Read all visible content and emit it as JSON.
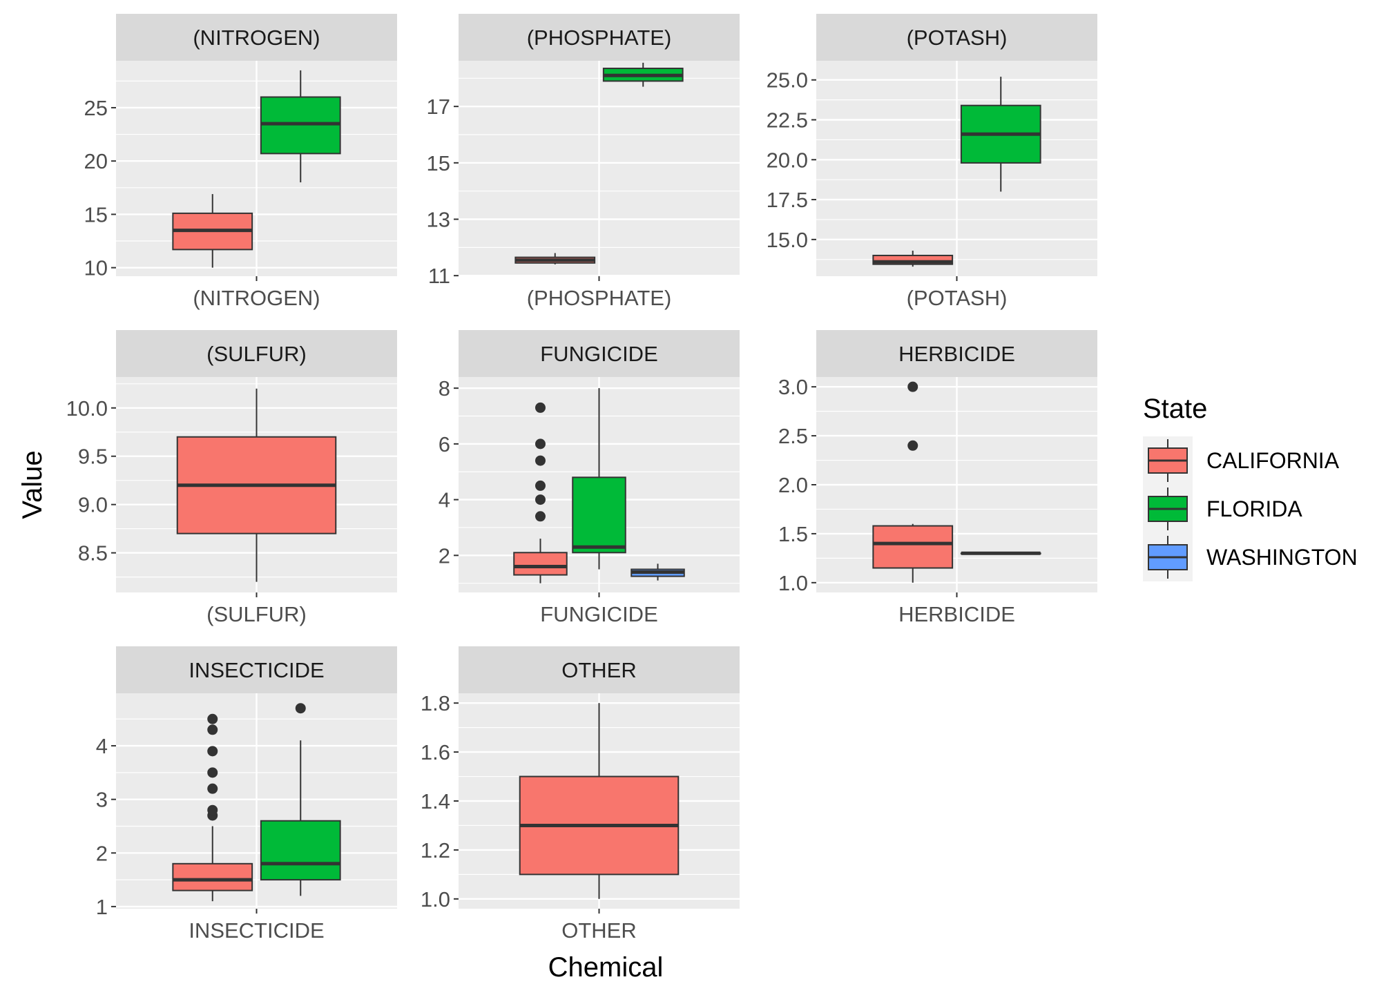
{
  "chart_data": {
    "type": "boxplot",
    "xlabel": "Chemical",
    "ylabel": "Value",
    "legend": {
      "title": "State",
      "position": "right",
      "entries": [
        {
          "name": "CALIFORNIA",
          "color": "#F8766D"
        },
        {
          "name": "FLORIDA",
          "color": "#00BA38"
        },
        {
          "name": "WASHINGTON",
          "color": "#619CFF"
        }
      ]
    },
    "group_colors": {
      "CALIFORNIA": "#F8766D",
      "FLORIDA": "#00BA38",
      "WASHINGTON": "#619CFF"
    },
    "facets": [
      {
        "title": "(NITROGEN)",
        "xtick": "(NITROGEN)",
        "ylim": [
          9.2,
          29.4
        ],
        "yticks": [
          10,
          15,
          20,
          25
        ],
        "ytick_labels": [
          "10",
          "15",
          "20",
          "25"
        ],
        "boxes": [
          {
            "group": "CALIFORNIA",
            "slot": 0,
            "nslots": 2,
            "min": 10.0,
            "q1": 11.7,
            "median": 13.5,
            "q3": 15.1,
            "max": 16.9,
            "outliers": []
          },
          {
            "group": "FLORIDA",
            "slot": 1,
            "nslots": 2,
            "min": 18.0,
            "q1": 20.7,
            "median": 23.5,
            "q3": 26.0,
            "max": 28.5,
            "outliers": []
          }
        ]
      },
      {
        "title": "(PHOSPHATE)",
        "xtick": "(PHOSPHATE)",
        "ylim": [
          10.98,
          18.62
        ],
        "yticks": [
          11,
          13,
          15,
          17
        ],
        "ytick_labels": [
          "11",
          "13",
          "15",
          "17"
        ],
        "boxes": [
          {
            "group": "CALIFORNIA",
            "slot": 0,
            "nslots": 2,
            "min": 11.4,
            "q1": 11.45,
            "median": 11.55,
            "q3": 11.65,
            "max": 11.8,
            "outliers": []
          },
          {
            "group": "FLORIDA",
            "slot": 1,
            "nslots": 2,
            "min": 17.7,
            "q1": 17.9,
            "median": 18.1,
            "q3": 18.35,
            "max": 18.55,
            "outliers": []
          }
        ]
      },
      {
        "title": "(POTASH)",
        "xtick": "(POTASH)",
        "ylim": [
          12.7,
          26.2
        ],
        "yticks": [
          15,
          17.5,
          20,
          22.5,
          25
        ],
        "ytick_labels": [
          "15.0",
          "17.5",
          "20.0",
          "22.5",
          "25.0"
        ],
        "boxes": [
          {
            "group": "CALIFORNIA",
            "slot": 0,
            "nslots": 2,
            "min": 13.3,
            "q1": 13.45,
            "median": 13.6,
            "q3": 14.0,
            "max": 14.3,
            "outliers": []
          },
          {
            "group": "FLORIDA",
            "slot": 1,
            "nslots": 2,
            "min": 18.0,
            "q1": 19.8,
            "median": 21.6,
            "q3": 23.4,
            "max": 25.2,
            "outliers": []
          }
        ]
      },
      {
        "title": "(SULFUR)",
        "xtick": "(SULFUR)",
        "ylim": [
          8.09,
          10.32
        ],
        "yticks": [
          8.5,
          9.0,
          9.5,
          10.0
        ],
        "ytick_labels": [
          "8.5",
          "9.0",
          "9.5",
          "10.0"
        ],
        "boxes": [
          {
            "group": "CALIFORNIA",
            "slot": 0,
            "nslots": 1,
            "min": 8.2,
            "q1": 8.7,
            "median": 9.2,
            "q3": 9.7,
            "max": 10.2,
            "outliers": []
          }
        ]
      },
      {
        "title": "FUNGICIDE",
        "xtick": "FUNGICIDE",
        "ylim": [
          0.67,
          8.4
        ],
        "yticks": [
          2,
          4,
          6,
          8
        ],
        "ytick_labels": [
          "2",
          "4",
          "6",
          "8"
        ],
        "boxes": [
          {
            "group": "CALIFORNIA",
            "slot": 0,
            "nslots": 3,
            "min": 1.0,
            "q1": 1.3,
            "median": 1.6,
            "q3": 2.1,
            "max": 2.6,
            "outliers": [
              3.4,
              4.0,
              4.5,
              5.4,
              6.0,
              7.3
            ]
          },
          {
            "group": "FLORIDA",
            "slot": 1,
            "nslots": 3,
            "min": 1.5,
            "q1": 2.1,
            "median": 2.3,
            "q3": 4.8,
            "max": 8.0,
            "outliers": []
          },
          {
            "group": "WASHINGTON",
            "slot": 2,
            "nslots": 3,
            "min": 1.1,
            "q1": 1.25,
            "median": 1.4,
            "q3": 1.5,
            "max": 1.7,
            "outliers": []
          }
        ]
      },
      {
        "title": "HERBICIDE",
        "xtick": "HERBICIDE",
        "ylim": [
          0.9,
          3.1
        ],
        "yticks": [
          1.0,
          1.5,
          2.0,
          2.5,
          3.0
        ],
        "ytick_labels": [
          "1.0",
          "1.5",
          "2.0",
          "2.5",
          "3.0"
        ],
        "boxes": [
          {
            "group": "CALIFORNIA",
            "slot": 0,
            "nslots": 2,
            "min": 1.0,
            "q1": 1.15,
            "median": 1.4,
            "q3": 1.58,
            "max": 1.6,
            "outliers": [
              2.4,
              3.0
            ]
          },
          {
            "group": "FLORIDA",
            "slot": 1,
            "nslots": 2,
            "min": 1.3,
            "q1": 1.3,
            "median": 1.3,
            "q3": 1.3,
            "max": 1.3,
            "outliers": []
          }
        ]
      },
      {
        "title": "INSECTICIDE",
        "xtick": "INSECTICIDE",
        "ylim": [
          0.96,
          4.98
        ],
        "yticks": [
          1,
          2,
          3,
          4
        ],
        "ytick_labels": [
          "1",
          "2",
          "3",
          "4"
        ],
        "boxes": [
          {
            "group": "CALIFORNIA",
            "slot": 0,
            "nslots": 2,
            "min": 1.1,
            "q1": 1.3,
            "median": 1.5,
            "q3": 1.8,
            "max": 2.5,
            "outliers": [
              2.7,
              2.8,
              3.2,
              3.5,
              3.9,
              4.3,
              4.5
            ]
          },
          {
            "group": "FLORIDA",
            "slot": 1,
            "nslots": 2,
            "min": 1.2,
            "q1": 1.5,
            "median": 1.8,
            "q3": 2.6,
            "max": 4.1,
            "outliers": [
              4.7
            ]
          }
        ]
      },
      {
        "title": "OTHER",
        "xtick": "OTHER",
        "ylim": [
          0.96,
          1.84
        ],
        "yticks": [
          1.0,
          1.2,
          1.4,
          1.6,
          1.8
        ],
        "ytick_labels": [
          "1.0",
          "1.2",
          "1.4",
          "1.6",
          "1.8"
        ],
        "boxes": [
          {
            "group": "CALIFORNIA",
            "slot": 0,
            "nslots": 1,
            "min": 1.0,
            "q1": 1.1,
            "median": 1.3,
            "q3": 1.5,
            "max": 1.8,
            "outliers": []
          }
        ]
      }
    ]
  }
}
